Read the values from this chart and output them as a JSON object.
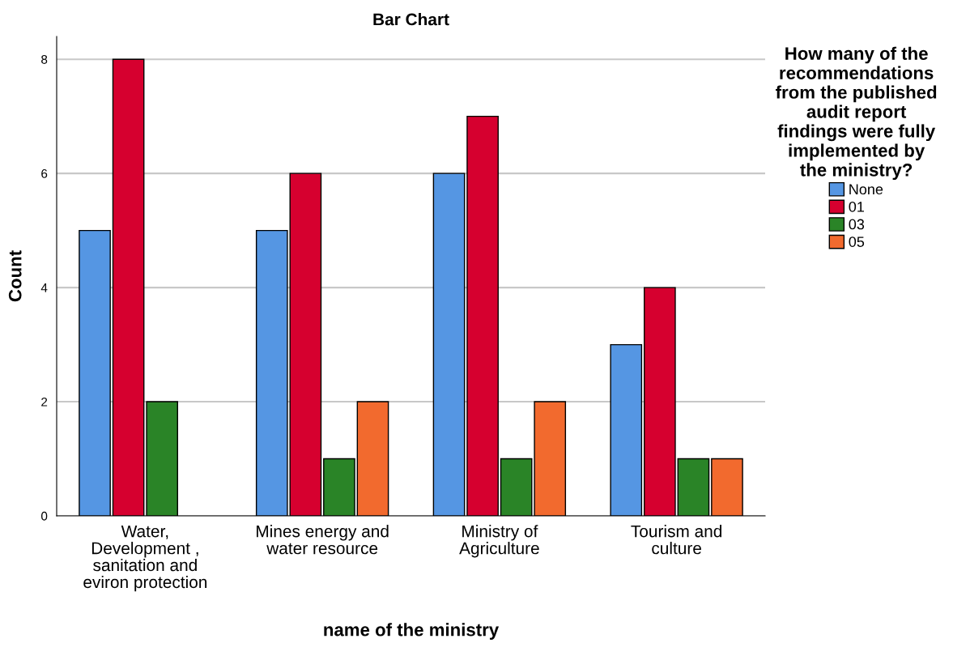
{
  "chart_data": {
    "type": "bar",
    "title": "Bar Chart",
    "xlabel": "name of the ministry",
    "ylabel": "Count",
    "legend_title": "How many of the\nrecommendations\nfrom the published\naudit report\nfindings were fully\nimplemented by\nthe ministry?",
    "categories": [
      "Water,\nDevelopment ,\nsanitation and\neviron protection",
      "Mines energy and\nwater resource",
      "Ministry of\nAgriculture",
      "Tourism and\nculture"
    ],
    "series": [
      {
        "name": "None",
        "color": "#5596e3",
        "values": [
          5,
          5,
          6,
          3
        ]
      },
      {
        "name": "01",
        "color": "#d6002f",
        "values": [
          8,
          6,
          7,
          4
        ]
      },
      {
        "name": "03",
        "color": "#2a8427",
        "values": [
          2,
          1,
          1,
          1
        ]
      },
      {
        "name": "05",
        "color": "#f26a2e",
        "values": [
          null,
          2,
          2,
          1
        ]
      }
    ],
    "ylim": [
      0,
      8.4
    ],
    "yticks": [
      0,
      2,
      4,
      6,
      8
    ],
    "grid": "y",
    "legend": "right"
  }
}
